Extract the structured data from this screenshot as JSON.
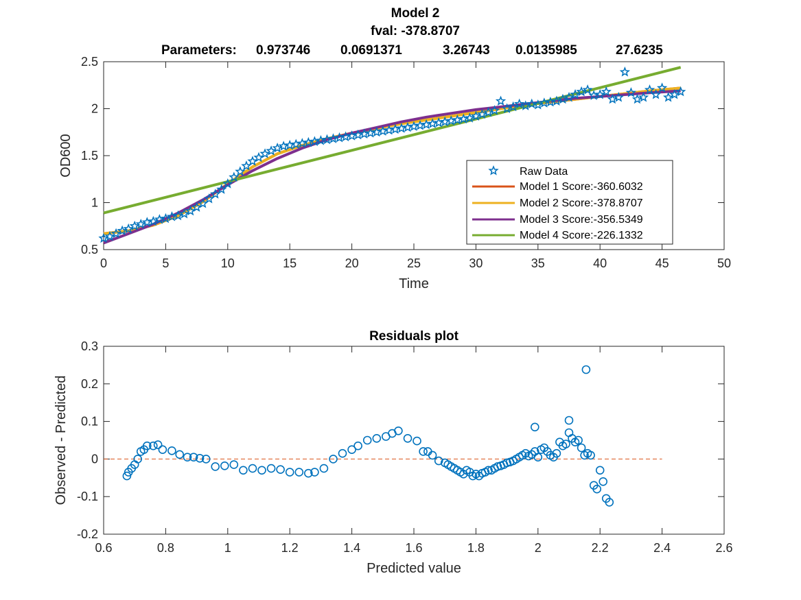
{
  "figure": {
    "title_lines": [
      "Model 2",
      "fval: -378.8707"
    ],
    "parameters_label": "Parameters:",
    "parameters": [
      "0.973746",
      "0.0691371",
      "3.26743",
      "0.0135985",
      "27.6235"
    ]
  },
  "chart_data": [
    {
      "type": "line",
      "xlabel": "Time",
      "ylabel": "OD600",
      "xlim": [
        0,
        50
      ],
      "ylim": [
        0.5,
        2.5
      ],
      "xticks": [
        0,
        5,
        10,
        15,
        20,
        25,
        30,
        35,
        40,
        45,
        50
      ],
      "yticks": [
        0.5,
        1,
        1.5,
        2,
        2.5
      ],
      "legend_position": "lower-right",
      "colors": {
        "raw": "#0072BD",
        "model1": "#D95319",
        "model2": "#EDB120",
        "model3": "#7E2F8E",
        "model4": "#77AC30"
      },
      "raw_data": {
        "name": "Raw Data",
        "x": [
          0,
          0.5,
          1,
          1.5,
          2,
          2.5,
          3,
          3.5,
          4,
          4.5,
          5,
          5.5,
          6,
          6.5,
          7,
          7.5,
          8,
          8.5,
          9,
          9.5,
          10,
          10.5,
          11,
          11.5,
          12,
          12.5,
          13,
          13.5,
          14,
          14.5,
          15,
          15.5,
          16,
          16.5,
          17,
          17.5,
          18,
          18.5,
          19,
          19.5,
          20,
          20.5,
          21,
          21.5,
          22,
          22.5,
          23,
          23.5,
          24,
          24.5,
          25,
          25.5,
          26,
          26.5,
          27,
          27.5,
          28,
          28.5,
          29,
          29.5,
          30,
          30.5,
          31,
          31.5,
          32,
          32.5,
          33,
          33.5,
          34,
          34.5,
          35,
          35.5,
          36,
          36.5,
          37,
          37.5,
          38,
          38.5,
          39,
          39.5,
          40,
          40.5,
          41,
          41.5,
          42,
          42.5,
          43,
          43.5,
          44,
          44.5,
          45,
          45.5,
          46,
          46.5
        ],
        "y": [
          0.62,
          0.64,
          0.67,
          0.7,
          0.72,
          0.75,
          0.77,
          0.79,
          0.8,
          0.82,
          0.83,
          0.85,
          0.86,
          0.88,
          0.91,
          0.95,
          0.99,
          1.04,
          1.09,
          1.14,
          1.2,
          1.27,
          1.33,
          1.39,
          1.44,
          1.48,
          1.52,
          1.55,
          1.58,
          1.6,
          1.61,
          1.62,
          1.63,
          1.64,
          1.65,
          1.66,
          1.67,
          1.68,
          1.69,
          1.7,
          1.71,
          1.72,
          1.73,
          1.74,
          1.75,
          1.76,
          1.77,
          1.78,
          1.79,
          1.8,
          1.81,
          1.82,
          1.83,
          1.84,
          1.85,
          1.86,
          1.87,
          1.88,
          1.89,
          1.9,
          1.92,
          1.94,
          1.96,
          1.98,
          2.08,
          2.0,
          2.02,
          2.05,
          2.03,
          2.05,
          2.04,
          2.06,
          2.07,
          2.08,
          2.1,
          2.12,
          2.15,
          2.18,
          2.2,
          2.14,
          2.15,
          2.18,
          2.1,
          2.12,
          2.39,
          2.17,
          2.1,
          2.12,
          2.2,
          2.15,
          2.22,
          2.12,
          2.15,
          2.18
        ]
      },
      "series": [
        {
          "name": "Model 1 Score:-360.6032",
          "x": [
            0,
            2,
            4,
            6,
            8,
            10,
            12,
            14,
            16,
            18,
            20,
            22,
            24,
            26,
            28,
            30,
            32,
            34,
            36,
            38,
            40,
            42,
            44,
            46.5
          ],
          "y": [
            0.67,
            0.7,
            0.76,
            0.86,
            1.01,
            1.2,
            1.38,
            1.52,
            1.61,
            1.68,
            1.74,
            1.79,
            1.84,
            1.88,
            1.92,
            1.96,
            2.0,
            2.04,
            2.07,
            2.1,
            2.13,
            2.16,
            2.19,
            2.22
          ]
        },
        {
          "name": "Model 2 Score:-378.8707",
          "x": [
            0,
            2,
            4,
            6,
            8,
            10,
            12,
            14,
            16,
            18,
            20,
            22,
            24,
            26,
            28,
            30,
            32,
            34,
            36,
            38,
            40,
            42,
            44,
            46.5
          ],
          "y": [
            0.67,
            0.7,
            0.76,
            0.86,
            1.01,
            1.2,
            1.38,
            1.52,
            1.61,
            1.68,
            1.74,
            1.79,
            1.84,
            1.88,
            1.92,
            1.96,
            2.0,
            2.04,
            2.07,
            2.1,
            2.13,
            2.16,
            2.19,
            2.22
          ]
        },
        {
          "name": "Model 3 Score:-356.5349",
          "x": [
            0,
            2,
            4,
            6,
            8,
            10,
            12,
            14,
            16,
            18,
            20,
            22,
            24,
            26,
            28,
            30,
            32,
            34,
            36,
            38,
            40,
            42,
            44,
            46.5
          ],
          "y": [
            0.57,
            0.67,
            0.77,
            0.89,
            1.03,
            1.19,
            1.34,
            1.47,
            1.58,
            1.67,
            1.74,
            1.8,
            1.86,
            1.91,
            1.95,
            1.99,
            2.02,
            2.05,
            2.08,
            2.11,
            2.13,
            2.15,
            2.17,
            2.19
          ]
        },
        {
          "name": "Model 4 Score:-226.1332",
          "x": [
            0,
            46.5
          ],
          "y": [
            0.89,
            2.44
          ]
        }
      ]
    },
    {
      "type": "scatter",
      "title": "Residuals plot",
      "xlabel": "Predicted value",
      "ylabel": "Observed - Predicted",
      "xlim": [
        0.6,
        2.6
      ],
      "ylim": [
        -0.2,
        0.3
      ],
      "xticks": [
        0.6,
        0.8,
        1,
        1.2,
        1.4,
        1.6,
        1.8,
        2,
        2.2,
        2.4,
        2.6
      ],
      "yticks": [
        -0.2,
        -0.1,
        0,
        0.1,
        0.2,
        0.3
      ],
      "reference_line": {
        "y": 0,
        "x_range": [
          0.6,
          2.4
        ],
        "style": "dashed",
        "color": "#D95319"
      },
      "color": "#0072BD",
      "x": [
        0.675,
        0.68,
        0.69,
        0.7,
        0.71,
        0.72,
        0.73,
        0.74,
        0.76,
        0.775,
        0.79,
        0.82,
        0.845,
        0.87,
        0.89,
        0.91,
        0.93,
        0.96,
        0.99,
        1.02,
        1.05,
        1.08,
        1.11,
        1.14,
        1.17,
        1.2,
        1.23,
        1.26,
        1.28,
        1.31,
        1.34,
        1.37,
        1.4,
        1.42,
        1.45,
        1.48,
        1.51,
        1.53,
        1.55,
        1.58,
        1.61,
        1.63,
        1.645,
        1.66,
        1.68,
        1.7,
        1.71,
        1.72,
        1.73,
        1.74,
        1.75,
        1.76,
        1.77,
        1.78,
        1.79,
        1.8,
        1.81,
        1.82,
        1.83,
        1.84,
        1.85,
        1.86,
        1.87,
        1.88,
        1.89,
        1.9,
        1.91,
        1.92,
        1.93,
        1.94,
        1.95,
        1.96,
        1.97,
        1.98,
        1.99,
        2.0,
        2.01,
        2.02,
        2.03,
        2.04,
        2.05,
        2.06,
        2.07,
        2.08,
        2.09,
        2.1,
        2.11,
        2.12,
        2.13,
        2.14,
        2.15,
        2.16,
        2.17,
        2.18,
        2.19,
        2.2,
        2.21,
        2.22,
        2.23,
        1.99,
        2.1,
        2.155
      ],
      "y": [
        -0.045,
        -0.035,
        -0.025,
        -0.015,
        0.0,
        0.02,
        0.025,
        0.035,
        0.035,
        0.038,
        0.025,
        0.022,
        0.012,
        0.005,
        0.005,
        0.002,
        0.0,
        -0.02,
        -0.018,
        -0.015,
        -0.03,
        -0.025,
        -0.03,
        -0.025,
        -0.028,
        -0.035,
        -0.035,
        -0.038,
        -0.035,
        -0.025,
        0.0,
        0.015,
        0.025,
        0.035,
        0.05,
        0.055,
        0.06,
        0.068,
        0.075,
        0.055,
        0.048,
        0.02,
        0.02,
        0.01,
        -0.005,
        -0.01,
        -0.015,
        -0.02,
        -0.025,
        -0.03,
        -0.035,
        -0.04,
        -0.03,
        -0.035,
        -0.045,
        -0.04,
        -0.045,
        -0.038,
        -0.035,
        -0.03,
        -0.03,
        -0.025,
        -0.02,
        -0.018,
        -0.015,
        -0.01,
        -0.008,
        -0.005,
        0.0,
        0.005,
        0.01,
        0.015,
        0.008,
        0.012,
        0.02,
        0.005,
        0.025,
        0.03,
        0.02,
        0.01,
        0.005,
        0.015,
        0.045,
        0.035,
        0.04,
        0.07,
        0.055,
        0.045,
        0.05,
        0.03,
        0.01,
        0.015,
        0.01,
        -0.07,
        -0.08,
        -0.03,
        -0.06,
        -0.105,
        -0.115,
        0.085,
        0.103,
        0.238
      ]
    }
  ]
}
